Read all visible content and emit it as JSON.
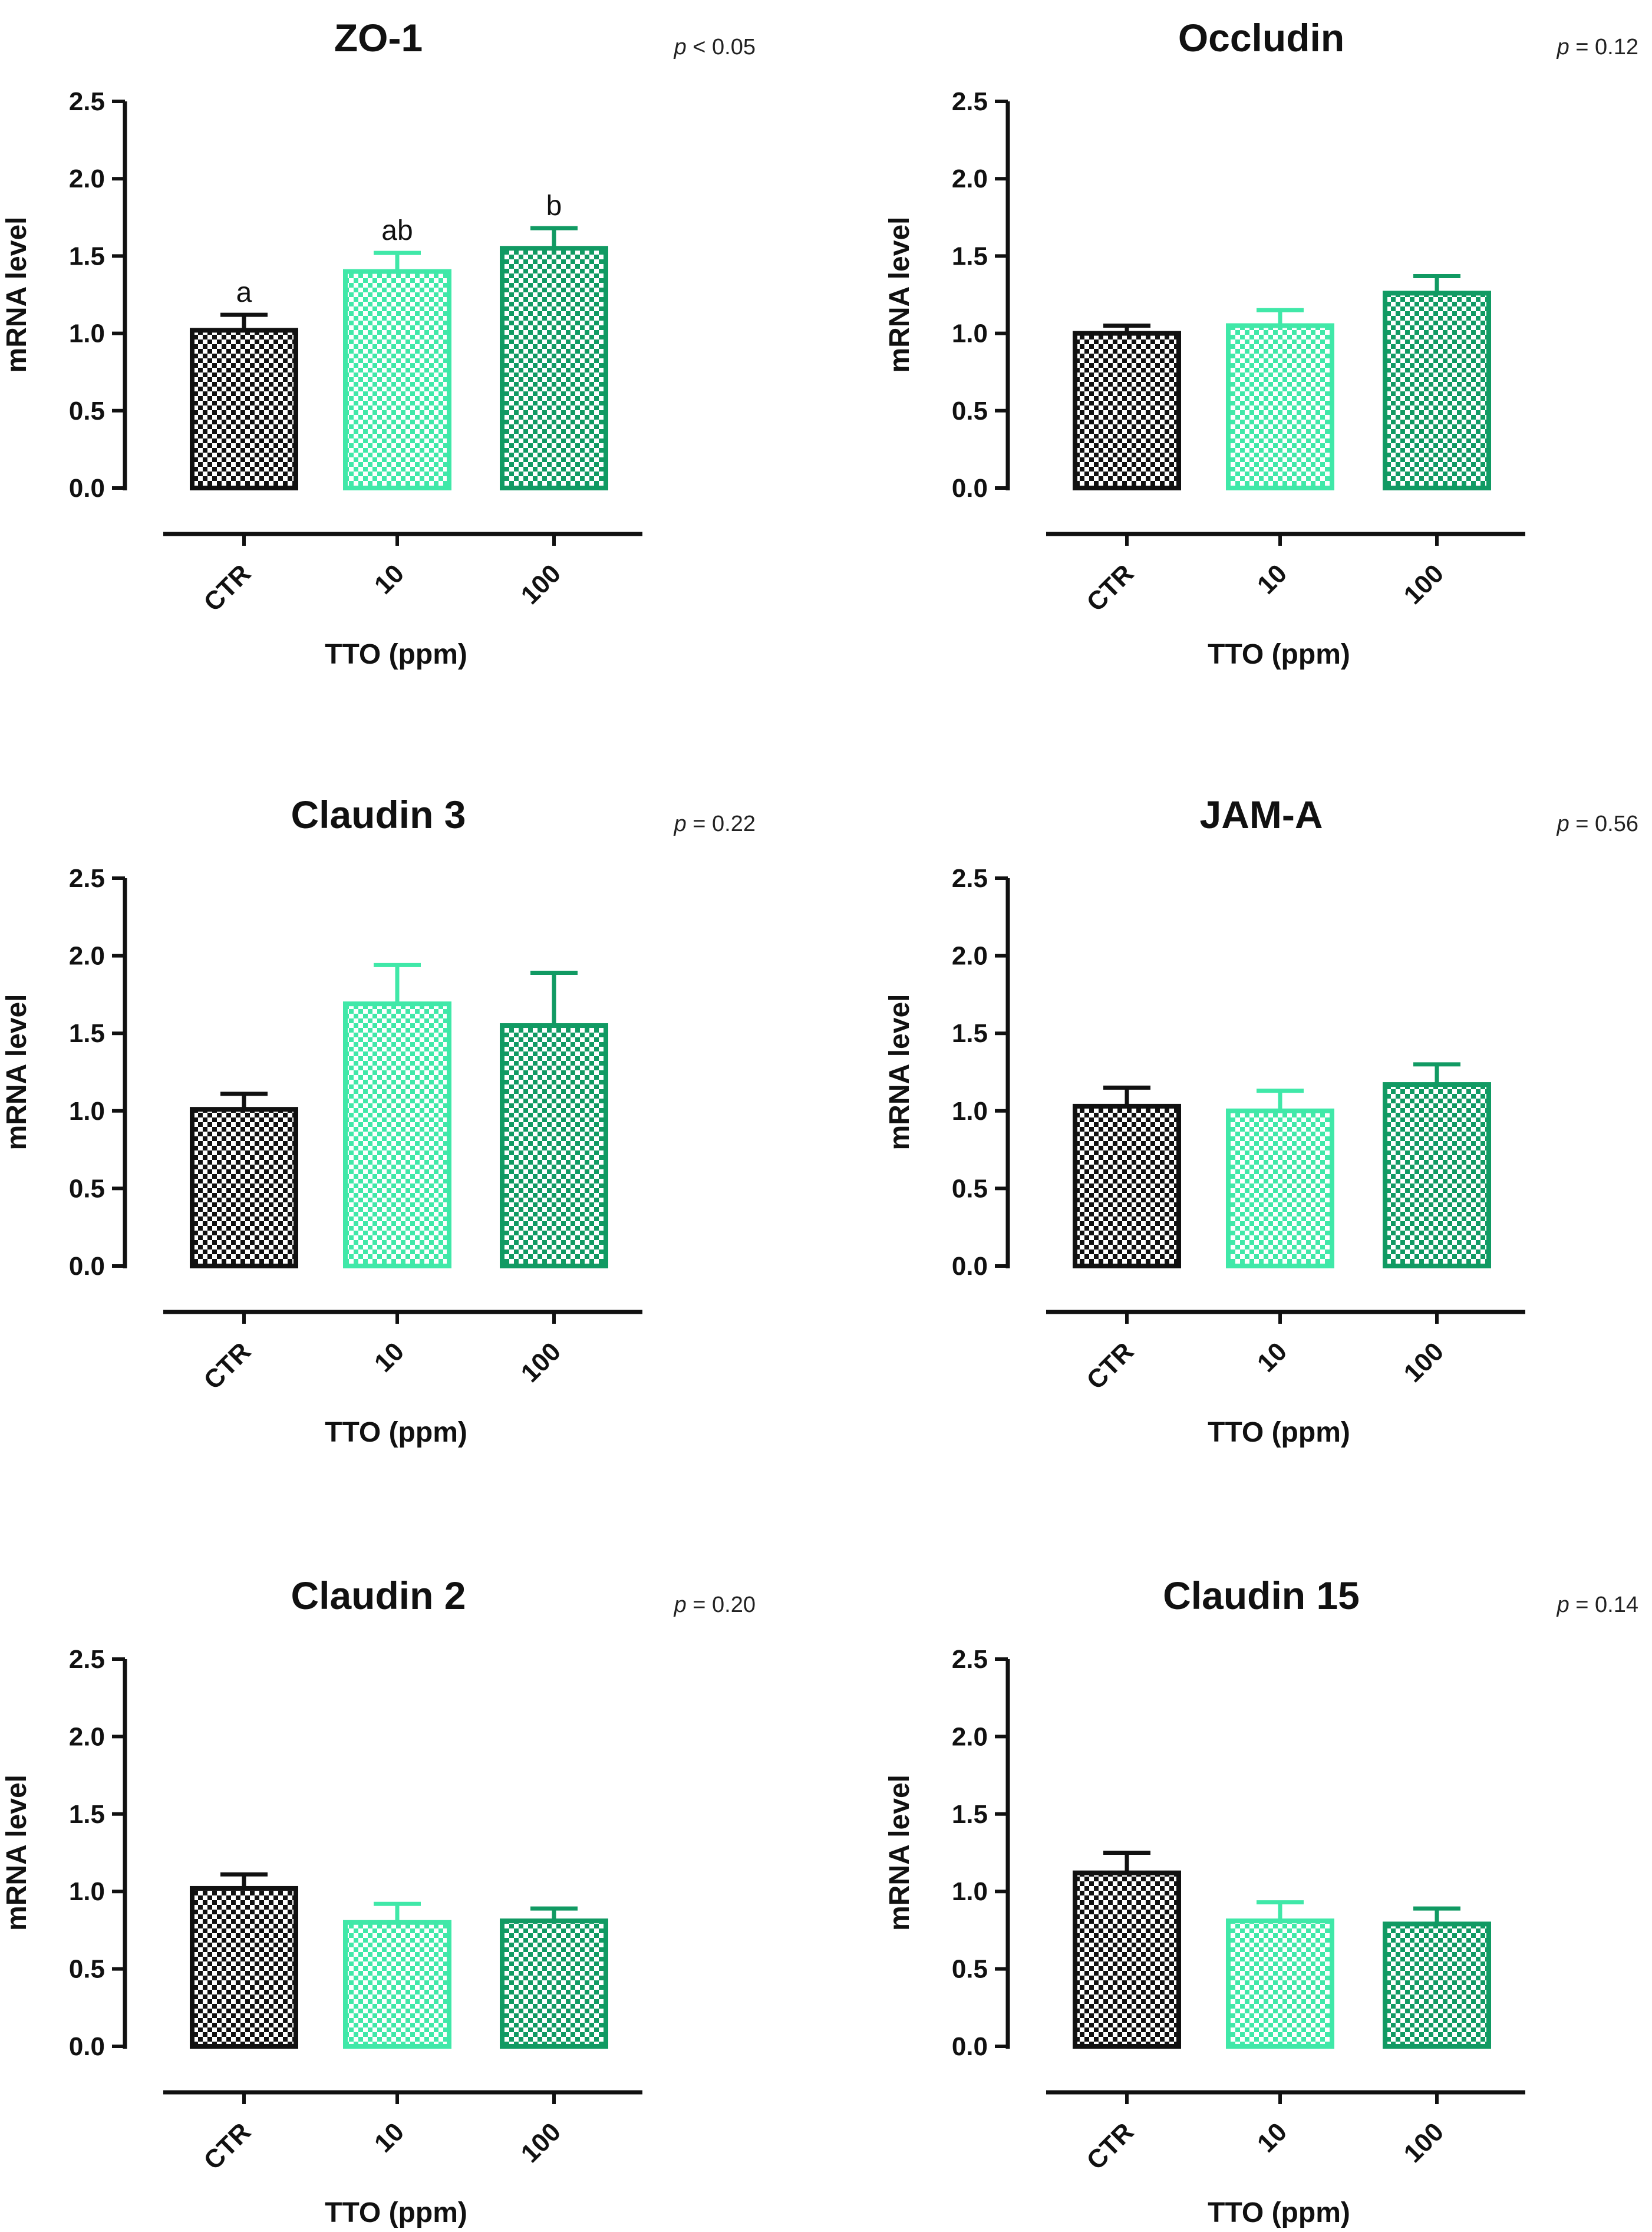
{
  "chart_data": [
    {
      "type": "bar",
      "title": "ZO-1",
      "annotation": {
        "symbol": "p",
        "text": " < 0.05"
      },
      "categories": [
        "CTR",
        "10",
        "100"
      ],
      "values": [
        1.02,
        1.4,
        1.55
      ],
      "errors": [
        0.1,
        0.12,
        0.13
      ],
      "significance": [
        "a",
        "ab",
        "b"
      ],
      "xlabel": "TTO (ppm)",
      "ylabel": "mRNA level",
      "ylim": [
        0,
        2.5
      ],
      "yticks": [
        "0.0",
        "0.5",
        "1.0",
        "1.5",
        "2.0",
        "2.5"
      ],
      "grid": false
    },
    {
      "type": "bar",
      "title": "Occludin",
      "annotation": {
        "symbol": "p",
        "text": " = 0.12"
      },
      "categories": [
        "CTR",
        "10",
        "100"
      ],
      "values": [
        1.0,
        1.05,
        1.26
      ],
      "errors": [
        0.05,
        0.1,
        0.11
      ],
      "significance": [],
      "xlabel": "TTO (ppm)",
      "ylabel": "mRNA level",
      "ylim": [
        0,
        2.5
      ],
      "yticks": [
        "0.0",
        "0.5",
        "1.0",
        "1.5",
        "2.0",
        "2.5"
      ],
      "grid": false
    },
    {
      "type": "bar",
      "title": "Claudin 3",
      "annotation": {
        "symbol": "p",
        "text": " = 0.22"
      },
      "categories": [
        "CTR",
        "10",
        "100"
      ],
      "values": [
        1.01,
        1.69,
        1.55
      ],
      "errors": [
        0.1,
        0.25,
        0.34
      ],
      "significance": [],
      "xlabel": "TTO (ppm)",
      "ylabel": "mRNA level",
      "ylim": [
        0,
        2.5
      ],
      "yticks": [
        "0.0",
        "0.5",
        "1.0",
        "1.5",
        "2.0",
        "2.5"
      ],
      "grid": false
    },
    {
      "type": "bar",
      "title": "JAM-A",
      "annotation": {
        "symbol": "p",
        "text": " = 0.56"
      },
      "categories": [
        "CTR",
        "10",
        "100"
      ],
      "values": [
        1.03,
        1.0,
        1.17
      ],
      "errors": [
        0.12,
        0.13,
        0.13
      ],
      "significance": [],
      "xlabel": "TTO (ppm)",
      "ylabel": "mRNA level",
      "ylim": [
        0,
        2.5
      ],
      "yticks": [
        "0.0",
        "0.5",
        "1.0",
        "1.5",
        "2.0",
        "2.5"
      ],
      "grid": false
    },
    {
      "type": "bar",
      "title": "Claudin 2",
      "annotation": {
        "symbol": "p",
        "text": " = 0.20"
      },
      "categories": [
        "CTR",
        "10",
        "100"
      ],
      "values": [
        1.02,
        0.8,
        0.81
      ],
      "errors": [
        0.09,
        0.12,
        0.08
      ],
      "significance": [],
      "xlabel": "TTO (ppm)",
      "ylabel": "mRNA level",
      "ylim": [
        0,
        2.5
      ],
      "yticks": [
        "0.0",
        "0.5",
        "1.0",
        "1.5",
        "2.0",
        "2.5"
      ],
      "grid": false
    },
    {
      "type": "bar",
      "title": "Claudin 15",
      "annotation": {
        "symbol": "p",
        "text": " = 0.14"
      },
      "categories": [
        "CTR",
        "10",
        "100"
      ],
      "values": [
        1.12,
        0.81,
        0.79
      ],
      "errors": [
        0.13,
        0.12,
        0.1
      ],
      "significance": [],
      "xlabel": "TTO (ppm)",
      "ylabel": "mRNA level",
      "ylim": [
        0,
        2.5
      ],
      "yticks": [
        "0.0",
        "0.5",
        "1.0",
        "1.5",
        "2.0",
        "2.5"
      ],
      "grid": false
    }
  ],
  "colors": {
    "bar_strokes": [
      "#111111",
      "#40e8a8",
      "#119a63"
    ],
    "pattern_light": "#ffffff"
  }
}
